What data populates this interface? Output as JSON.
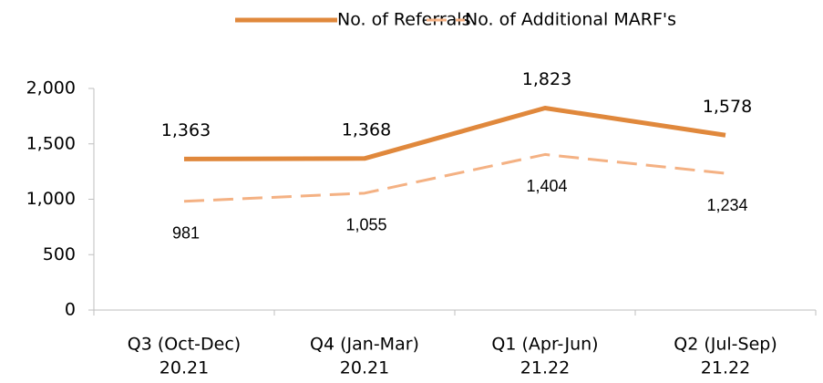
{
  "chart_data": {
    "type": "line",
    "categories": [
      [
        "Q3 (Oct-Dec)",
        "20.21"
      ],
      [
        "Q4 (Jan-Mar)",
        "20.21"
      ],
      [
        "Q1 (Apr-Jun)",
        "21.22"
      ],
      [
        "Q2 (Jul-Sep)",
        "21.22"
      ]
    ],
    "series": [
      {
        "name": "No. of Referrals",
        "color": "#e0883c",
        "dash": false,
        "values": [
          1363,
          1368,
          1823,
          1578
        ],
        "value_labels": [
          "1,363",
          "1,368",
          "1,823",
          "1,578"
        ]
      },
      {
        "name": "No. of Additional MARF's",
        "color": "#f4b183",
        "dash": true,
        "values": [
          981,
          1055,
          1404,
          1234
        ],
        "value_labels": [
          "981",
          "1,055",
          "1,404",
          "1,234"
        ]
      }
    ],
    "ylim": [
      0,
      2000
    ],
    "yticks": [
      0,
      500,
      {
        "value": 1000,
        "label": "1,000"
      },
      {
        "value": 1500,
        "label": "1,500"
      },
      {
        "value": 2000,
        "label": "2,000"
      }
    ],
    "legend": "top"
  }
}
